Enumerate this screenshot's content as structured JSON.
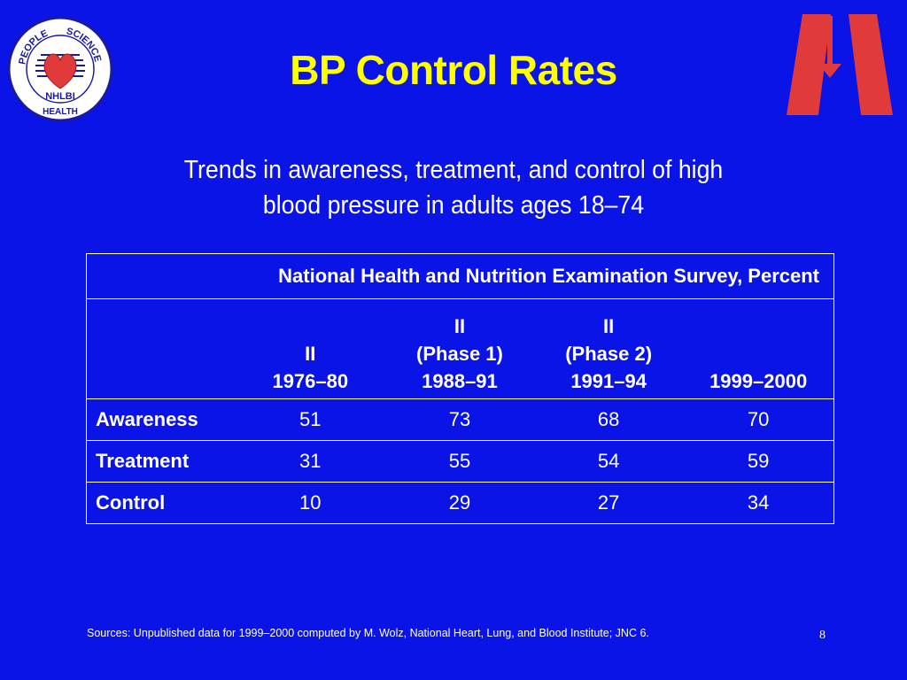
{
  "slide": {
    "title": "BP Control Rates",
    "subtitle_line1": "Trends in awareness, treatment, and control of high",
    "subtitle_line2": "blood pressure in adults ages 18–74",
    "logo_left": {
      "top_text_left": "PEOPLE",
      "top_text_right": "SCIENCE",
      "center_text": "NHLBI",
      "bottom_text": "HEALTH"
    },
    "logo_right_icon": "down-arrow-logo-icon",
    "page_number": "8"
  },
  "table": {
    "survey_header": "National Health and Nutrition Examination Survey, Percent",
    "columns": [
      {
        "line1": "",
        "line2": "II",
        "line3": "1976–80"
      },
      {
        "line1": "II",
        "line2": "(Phase 1)",
        "line3": "1988–91"
      },
      {
        "line1": "II",
        "line2": "(Phase 2)",
        "line3": "1991–94"
      },
      {
        "line1": "",
        "line2": "",
        "line3": "1999–2000"
      }
    ],
    "rows": [
      {
        "label": "Awareness",
        "values": [
          "51",
          "73",
          "68",
          "70"
        ]
      },
      {
        "label": "Treatment",
        "values": [
          "31",
          "55",
          "54",
          "59"
        ]
      },
      {
        "label": "Control",
        "values": [
          "10",
          "29",
          "27",
          "34"
        ]
      }
    ]
  },
  "footer": {
    "sources": "Sources:  Unpublished data for 1999–2000 computed by M. Wolz, National Heart, Lung, and Blood Institute; JNC 6."
  },
  "colors": {
    "background": "#0a14e6",
    "title": "#ffff00",
    "logo_red": "#e03a3a"
  }
}
